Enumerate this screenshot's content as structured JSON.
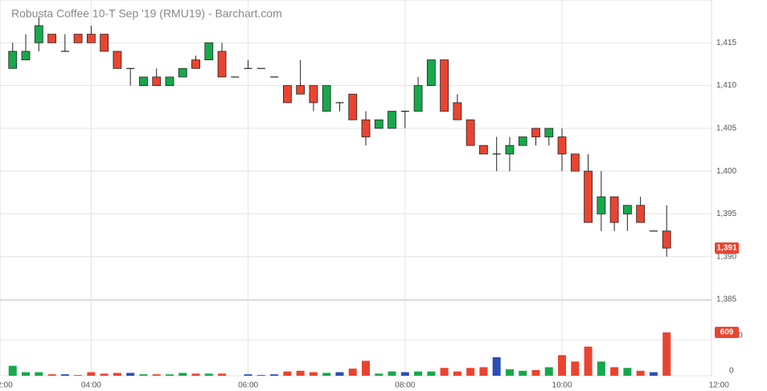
{
  "chart_data": {
    "type": "candlestick",
    "title": "Robusta Coffee 10-T Sep '19 (RMU19) - Barchart.com",
    "x": [
      180,
      190,
      200,
      210,
      220,
      230,
      240,
      250,
      260,
      270,
      280,
      290,
      300,
      310,
      320,
      330,
      340,
      350,
      360,
      370,
      380,
      390,
      400,
      410,
      420,
      430,
      440,
      450,
      460,
      470,
      480,
      490,
      500,
      510,
      520,
      530,
      540,
      550,
      560,
      570,
      580,
      590,
      600,
      610,
      620,
      630,
      640,
      650,
      660,
      670,
      680
    ],
    "open": [
      1412,
      1413,
      1415,
      1416,
      1414,
      1416,
      1416,
      1416,
      1414,
      1412,
      1410,
      1411,
      1410,
      1411,
      1413,
      1413,
      1414,
      1411,
      1412,
      1412,
      1411,
      1410,
      1410,
      1410,
      1407,
      1408,
      1409,
      1406,
      1405,
      1405,
      1407,
      1407,
      1410,
      1413,
      1408,
      1406,
      1403,
      1402,
      1402,
      1403,
      1405,
      1404,
      1404,
      1402,
      1400,
      1395,
      1397,
      1395,
      1396,
      1393,
      1393
    ],
    "high": [
      1415,
      1416,
      1418,
      1416,
      1416,
      1416,
      1417,
      1416,
      1414,
      1412,
      1411,
      1412,
      1411,
      1412,
      1413.5,
      1415,
      1415,
      1411,
      1413,
      1412,
      1411,
      1410,
      1413,
      1410,
      1410,
      1408,
      1409,
      1407,
      1406,
      1407,
      1407,
      1411,
      1413,
      1413,
      1409,
      1406,
      1403,
      1404,
      1404,
      1404,
      1405,
      1405,
      1405,
      1402,
      1402,
      1400,
      1397,
      1396,
      1397,
      1393,
      1396
    ],
    "low": [
      1412,
      1413,
      1414,
      1415,
      1414,
      1415,
      1415,
      1414,
      1412,
      1410,
      1410,
      1410,
      1410,
      1411,
      1412,
      1413,
      1411,
      1411,
      1412,
      1412,
      1411,
      1408,
      1409,
      1407,
      1407,
      1407,
      1406,
      1403,
      1405,
      1405,
      1405,
      1407,
      1410,
      1407,
      1406,
      1403,
      1402,
      1400,
      1400,
      1403,
      1403,
      1403,
      1400,
      1400,
      1394,
      1393,
      1393,
      1393,
      1394,
      1393,
      1390
    ],
    "close": [
      1414,
      1414,
      1417,
      1415,
      1414,
      1415,
      1415,
      1414,
      1412,
      1412,
      1411,
      1410,
      1411,
      1412,
      1412,
      1415,
      1411,
      1411,
      1412,
      1412,
      1411,
      1408,
      1409,
      1408,
      1410,
      1408,
      1406,
      1404,
      1406,
      1407,
      1407,
      1410,
      1413,
      1407,
      1406,
      1403,
      1402,
      1402,
      1403,
      1404,
      1404,
      1405,
      1402,
      1400,
      1394,
      1397,
      1394,
      1396,
      1394,
      1393,
      1391
    ],
    "last_price_label": "1,391",
    "ylim": [
      1385,
      1420
    ],
    "yticks": [
      {
        "value": 1385,
        "label": "1,385"
      },
      {
        "value": 1390,
        "label": "1,390"
      },
      {
        "value": 1395,
        "label": "1,395"
      },
      {
        "value": 1400,
        "label": "1,400"
      },
      {
        "value": 1405,
        "label": "1,405"
      },
      {
        "value": 1410,
        "label": "1,410"
      },
      {
        "value": 1415,
        "label": "1,415"
      }
    ],
    "xlim": [
      174,
      718
    ],
    "xticks": [
      {
        "value": 120,
        "label": "2:00"
      },
      {
        "value": 240,
        "label": "04:00"
      },
      {
        "value": 360,
        "label": "06:00"
      },
      {
        "value": 480,
        "label": "08:00"
      },
      {
        "value": 600,
        "label": "10:00"
      },
      {
        "value": 720,
        "label": "12:00"
      }
    ],
    "grid": true,
    "colors": {
      "up": "#17a84c",
      "down": "#ea4430",
      "unchanged": "#2a4fb5"
    },
    "volume": {
      "values": [
        140,
        50,
        50,
        20,
        20,
        10,
        50,
        30,
        40,
        40,
        20,
        20,
        20,
        40,
        30,
        30,
        30,
        0,
        20,
        10,
        20,
        60,
        70,
        50,
        40,
        50,
        100,
        210,
        30,
        60,
        50,
        60,
        60,
        110,
        60,
        110,
        120,
        260,
        90,
        70,
        80,
        120,
        290,
        200,
        410,
        200,
        120,
        110,
        70,
        50,
        609
      ],
      "ylim": [
        0,
        1050
      ],
      "yticks": [
        0,
        500
      ]
    }
  }
}
